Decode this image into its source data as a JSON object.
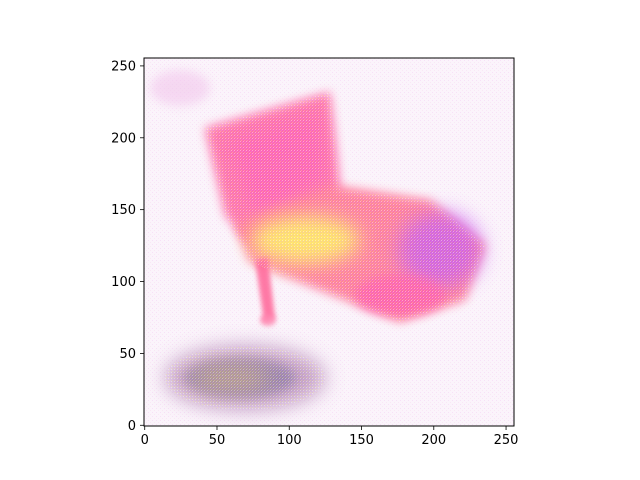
{
  "figure": {
    "content": "generated-chair-image",
    "dominant_colors": {
      "seat_back": "#ff6fa0",
      "seat_highlight": "#ffe866",
      "accent_purple": "#c65cf0",
      "shadow_blob": "#9a7aa8",
      "background": "#fbf4fb"
    }
  },
  "axes": {
    "x_ticks": [
      "0",
      "50",
      "100",
      "150",
      "200",
      "250"
    ],
    "y_ticks": [
      "0",
      "50",
      "100",
      "150",
      "200",
      "250"
    ],
    "x_tick_values": [
      0,
      50,
      100,
      150,
      200,
      250
    ],
    "y_tick_values": [
      0,
      50,
      100,
      150,
      200,
      250
    ],
    "x_range": [
      -0.5,
      255.5
    ],
    "y_range": [
      255.5,
      -0.5
    ],
    "y_inverted": true
  }
}
